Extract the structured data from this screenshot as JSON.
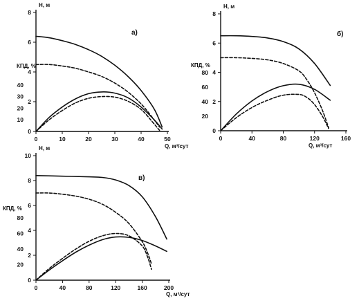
{
  "chart_data": [
    {
      "type": "line",
      "panel_label": "а)",
      "x_axis": {
        "label": "Q, м³/сут",
        "range": [
          0,
          50
        ],
        "ticks": [
          0,
          10,
          20,
          30,
          40,
          50
        ]
      },
      "y_axis_head": {
        "label": "Н, м",
        "range": [
          0,
          8
        ],
        "ticks": [
          0,
          2,
          4,
          6,
          8
        ]
      },
      "y_axis_kpd": {
        "label": "КПД, %",
        "range": [
          0,
          50
        ],
        "ticks": [
          0,
          10,
          20,
          30,
          40
        ]
      },
      "series": [
        {
          "style": "solid",
          "axis": "head",
          "x": [
            0,
            5,
            10,
            15,
            20,
            25,
            30,
            35,
            40,
            45,
            48
          ],
          "y": [
            6.4,
            6.3,
            6.1,
            5.85,
            5.5,
            5.05,
            4.45,
            3.7,
            2.75,
            1.5,
            0.3
          ]
        },
        {
          "style": "dashed",
          "axis": "head",
          "x": [
            0,
            5,
            10,
            15,
            20,
            25,
            30,
            35,
            40,
            44,
            47
          ],
          "y": [
            4.5,
            4.5,
            4.4,
            4.25,
            4.0,
            3.7,
            3.25,
            2.65,
            1.85,
            1.0,
            0.3
          ]
        },
        {
          "style": "solid",
          "axis": "kpd",
          "x": [
            0,
            5,
            10,
            15,
            20,
            25,
            30,
            35,
            40,
            45,
            48
          ],
          "y": [
            0,
            12,
            21,
            28,
            32.5,
            34,
            33,
            29,
            21,
            10,
            2
          ]
        },
        {
          "style": "dashed",
          "axis": "kpd",
          "x": [
            0,
            5,
            10,
            15,
            20,
            25,
            30,
            35,
            40,
            44,
            47
          ],
          "y": [
            0,
            10,
            18,
            24.5,
            28.5,
            30,
            29.5,
            26,
            19,
            9,
            1
          ]
        }
      ]
    },
    {
      "type": "line",
      "panel_label": "б)",
      "x_axis": {
        "label": "Q, м³/сут",
        "range": [
          0,
          160
        ],
        "ticks": [
          0,
          40,
          80,
          120,
          160
        ]
      },
      "y_axis_head": {
        "label": "Н, м",
        "range": [
          0,
          8
        ],
        "ticks": [
          0,
          2,
          4,
          6,
          8
        ]
      },
      "y_axis_kpd": {
        "label": "КПД, %",
        "range": [
          0,
          80
        ],
        "ticks": [
          0,
          20,
          40,
          60,
          80
        ]
      },
      "series": [
        {
          "style": "solid",
          "axis": "head",
          "x": [
            0,
            20,
            40,
            60,
            80,
            100,
            120,
            140
          ],
          "y": [
            6.5,
            6.5,
            6.45,
            6.35,
            6.1,
            5.6,
            4.6,
            3.1
          ]
        },
        {
          "style": "dashed",
          "axis": "head",
          "x": [
            0,
            20,
            40,
            60,
            80,
            100,
            110,
            120,
            130,
            138
          ],
          "y": [
            5.0,
            5.0,
            4.95,
            4.85,
            4.6,
            4.1,
            3.5,
            2.6,
            1.4,
            0.2
          ]
        },
        {
          "style": "solid",
          "axis": "kpd",
          "x": [
            0,
            20,
            40,
            60,
            80,
            100,
            120,
            140
          ],
          "y": [
            0,
            23,
            41,
            54,
            62,
            64,
            57,
            42
          ]
        },
        {
          "style": "dashed",
          "axis": "kpd",
          "x": [
            0,
            20,
            40,
            60,
            80,
            100,
            110,
            120,
            130,
            138
          ],
          "y": [
            0,
            18,
            32,
            42,
            49,
            50,
            46,
            36,
            20,
            3
          ]
        }
      ]
    },
    {
      "type": "line",
      "panel_label": "в)",
      "x_axis": {
        "label": "Q, м³/сут",
        "range": [
          0,
          200
        ],
        "ticks": [
          0,
          40,
          80,
          120,
          160,
          200
        ]
      },
      "y_axis_head": {
        "label": "Н, м",
        "range": [
          0,
          10
        ],
        "ticks": [
          0,
          2,
          4,
          6,
          8,
          10
        ]
      },
      "y_axis_kpd": {
        "label": "КПД, %",
        "range": [
          0,
          80
        ],
        "ticks": [
          0,
          20,
          40,
          60,
          80
        ]
      },
      "series": [
        {
          "style": "solid",
          "axis": "head",
          "x": [
            0,
            40,
            80,
            100,
            120,
            140,
            160,
            180,
            197
          ],
          "y": [
            8.4,
            8.35,
            8.3,
            8.25,
            8.05,
            7.6,
            6.7,
            5.1,
            3.3
          ]
        },
        {
          "style": "dashed",
          "axis": "head",
          "x": [
            0,
            20,
            40,
            60,
            80,
            100,
            120,
            140,
            160,
            168,
            174
          ],
          "y": [
            7.0,
            7.0,
            6.9,
            6.75,
            6.5,
            6.1,
            5.45,
            4.55,
            3.1,
            2.2,
            1.3
          ]
        },
        {
          "style": "solid",
          "axis": "kpd",
          "x": [
            0,
            20,
            40,
            60,
            80,
            100,
            120,
            140,
            160,
            180,
            197
          ],
          "y": [
            0,
            13,
            25,
            36,
            45,
            52,
            55.5,
            55,
            51,
            44,
            37
          ]
        },
        {
          "style": "dashed",
          "axis": "kpd",
          "x": [
            0,
            20,
            40,
            60,
            80,
            100,
            120,
            140,
            160,
            168,
            174
          ],
          "y": [
            0,
            15,
            28,
            40,
            50,
            57,
            60,
            57,
            44,
            30,
            14
          ]
        }
      ]
    }
  ]
}
